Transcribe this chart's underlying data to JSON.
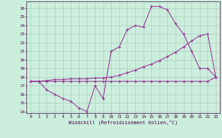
{
  "xlabel": "Windchill (Refroidissement éolien,°C)",
  "bg_color": "#cceedd",
  "grid_color": "#aaccbb",
  "line_color": "#993399",
  "xlim": [
    -0.5,
    23.5
  ],
  "ylim": [
    13.8,
    26.8
  ],
  "xticks": [
    0,
    1,
    2,
    3,
    4,
    5,
    6,
    7,
    8,
    9,
    10,
    11,
    12,
    13,
    14,
    15,
    16,
    17,
    18,
    19,
    20,
    21,
    22,
    23
  ],
  "yticks": [
    14,
    15,
    16,
    17,
    18,
    19,
    20,
    21,
    22,
    23,
    24,
    25,
    26
  ],
  "curve1_x": [
    0,
    1,
    2,
    3,
    4,
    5,
    6,
    7,
    8,
    9,
    10,
    11,
    12,
    13,
    14,
    15,
    16,
    17,
    18,
    19,
    20,
    21,
    22,
    23
  ],
  "curve1_y": [
    17.5,
    17.5,
    16.5,
    16.0,
    15.5,
    15.2,
    14.4,
    14.0,
    17.0,
    15.5,
    21.0,
    21.5,
    23.5,
    24.0,
    23.8,
    26.2,
    26.2,
    25.8,
    24.2,
    23.0,
    21.0,
    19.0,
    19.0,
    18.0
  ],
  "curve2_x": [
    0,
    1,
    2,
    3,
    4,
    5,
    6,
    7,
    8,
    9,
    10,
    11,
    12,
    13,
    14,
    15,
    16,
    17,
    18,
    19,
    20,
    21,
    22,
    23
  ],
  "curve2_y": [
    17.5,
    17.5,
    17.6,
    17.7,
    17.7,
    17.8,
    17.8,
    17.8,
    17.9,
    17.9,
    18.0,
    18.2,
    18.5,
    18.8,
    19.2,
    19.5,
    19.9,
    20.4,
    20.9,
    21.5,
    22.2,
    22.8,
    23.0,
    18.0
  ],
  "curve3_x": [
    0,
    1,
    2,
    3,
    4,
    5,
    6,
    7,
    8,
    9,
    10,
    11,
    12,
    13,
    14,
    15,
    16,
    17,
    18,
    19,
    20,
    21,
    22,
    23
  ],
  "curve3_y": [
    17.5,
    17.5,
    17.5,
    17.5,
    17.5,
    17.5,
    17.5,
    17.5,
    17.5,
    17.5,
    17.5,
    17.5,
    17.5,
    17.5,
    17.5,
    17.5,
    17.5,
    17.5,
    17.5,
    17.5,
    17.5,
    17.5,
    17.5,
    18.0
  ]
}
